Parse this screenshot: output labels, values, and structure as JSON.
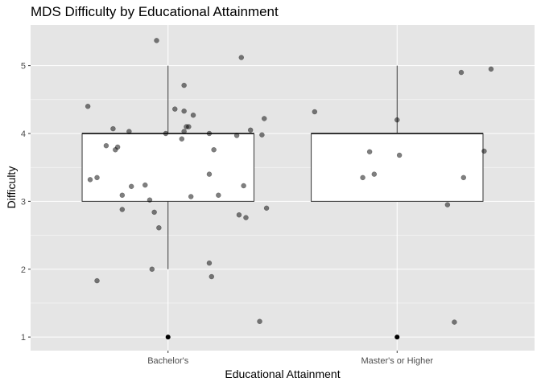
{
  "chart_data": {
    "type": "boxplot",
    "title": "MDS Difficulty by Educational Attainment",
    "xlabel": "Educational Attainment",
    "ylabel": "Difficulty",
    "categories": [
      "Bachelor's",
      "Master's or Higher"
    ],
    "ylim": [
      0.8,
      5.6
    ],
    "yticks": [
      1,
      2,
      3,
      4,
      5
    ],
    "grid": true,
    "legend": "none",
    "colors": {
      "panel": "#e5e5e5",
      "grid": "#ffffff",
      "box_fill": "#ffffff",
      "box_stroke": "#333333",
      "point": "#000000"
    },
    "boxes": [
      {
        "category": "Bachelor's",
        "min": 2,
        "q1": 3,
        "median": 4,
        "q3": 4,
        "max": 5,
        "outliers": [
          1
        ]
      },
      {
        "category": "Master's or Higher",
        "min": 3,
        "q1": 3,
        "median": 4,
        "q3": 4,
        "max": 5,
        "outliers": [
          1
        ]
      }
    ],
    "points": [
      {
        "x": 0.65,
        "y": 4.4
      },
      {
        "x": 0.66,
        "y": 3.32
      },
      {
        "x": 0.69,
        "y": 3.35
      },
      {
        "x": 0.69,
        "y": 1.83
      },
      {
        "x": 0.73,
        "y": 3.82
      },
      {
        "x": 0.76,
        "y": 4.07
      },
      {
        "x": 0.77,
        "y": 3.76
      },
      {
        "x": 0.78,
        "y": 3.8
      },
      {
        "x": 0.8,
        "y": 3.09
      },
      {
        "x": 0.8,
        "y": 2.88
      },
      {
        "x": 0.83,
        "y": 4.03
      },
      {
        "x": 0.84,
        "y": 3.22
      },
      {
        "x": 0.9,
        "y": 3.24
      },
      {
        "x": 0.92,
        "y": 3.02
      },
      {
        "x": 0.93,
        "y": 2.0
      },
      {
        "x": 0.94,
        "y": 2.84
      },
      {
        "x": 0.95,
        "y": 5.37
      },
      {
        "x": 0.96,
        "y": 2.61
      },
      {
        "x": 0.99,
        "y": 4.0
      },
      {
        "x": 1.03,
        "y": 4.36
      },
      {
        "x": 1.06,
        "y": 3.92
      },
      {
        "x": 1.07,
        "y": 4.71
      },
      {
        "x": 1.07,
        "y": 4.33
      },
      {
        "x": 1.07,
        "y": 4.03
      },
      {
        "x": 1.08,
        "y": 4.1
      },
      {
        "x": 1.09,
        "y": 4.1
      },
      {
        "x": 1.1,
        "y": 3.07
      },
      {
        "x": 1.11,
        "y": 4.27
      },
      {
        "x": 1.18,
        "y": 3.4
      },
      {
        "x": 1.18,
        "y": 4.0
      },
      {
        "x": 1.18,
        "y": 2.09
      },
      {
        "x": 1.19,
        "y": 1.89
      },
      {
        "x": 1.2,
        "y": 3.76
      },
      {
        "x": 1.22,
        "y": 3.09
      },
      {
        "x": 1.3,
        "y": 3.97
      },
      {
        "x": 1.31,
        "y": 2.8
      },
      {
        "x": 1.32,
        "y": 5.12
      },
      {
        "x": 1.33,
        "y": 3.23
      },
      {
        "x": 1.34,
        "y": 2.76
      },
      {
        "x": 1.36,
        "y": 4.05
      },
      {
        "x": 1.4,
        "y": 1.23
      },
      {
        "x": 1.41,
        "y": 3.98
      },
      {
        "x": 1.42,
        "y": 4.22
      },
      {
        "x": 1.43,
        "y": 2.9
      },
      {
        "x": 1.64,
        "y": 4.32
      },
      {
        "x": 1.85,
        "y": 3.35
      },
      {
        "x": 1.88,
        "y": 3.73
      },
      {
        "x": 1.9,
        "y": 3.4
      },
      {
        "x": 2.0,
        "y": 4.2
      },
      {
        "x": 2.01,
        "y": 3.68
      },
      {
        "x": 2.22,
        "y": 2.95
      },
      {
        "x": 2.25,
        "y": 1.22
      },
      {
        "x": 2.28,
        "y": 4.9
      },
      {
        "x": 2.29,
        "y": 3.35
      },
      {
        "x": 2.38,
        "y": 3.74
      },
      {
        "x": 2.41,
        "y": 4.95
      }
    ]
  }
}
